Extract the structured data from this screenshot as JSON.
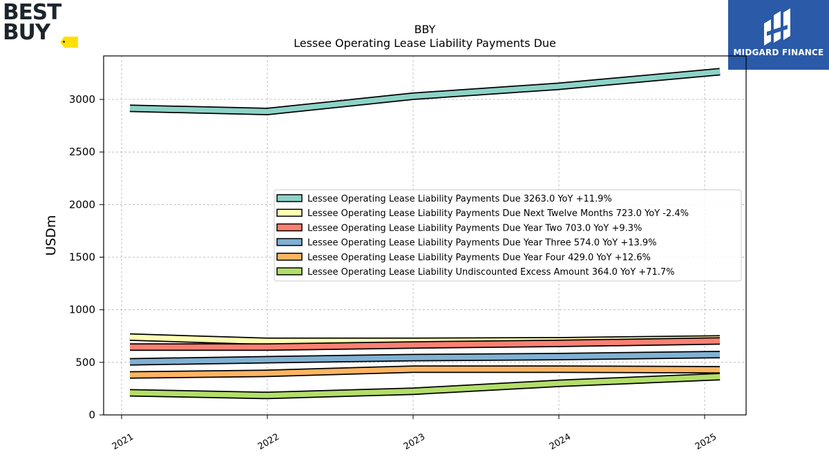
{
  "brand": {
    "logo_text_line1": "BEST",
    "logo_text_line2": "BUY",
    "logo_icon": "price-tag-icon",
    "logo_accent": "#ffe000"
  },
  "partner": {
    "name": "MIDGARD FINANCE",
    "icon": "midgard-logo-icon",
    "background": "#2a5aa8"
  },
  "chart_data": {
    "type": "line",
    "title": "BBY",
    "subtitle": "Lessee Operating Lease Liability Payments Due",
    "xlabel": "",
    "ylabel": "USDm",
    "x": [
      "2021",
      "2022",
      "2023",
      "2024",
      "2025"
    ],
    "ylim": [
      0,
      3400
    ],
    "yticks": [
      0,
      500,
      1000,
      1500,
      2000,
      2500,
      3000
    ],
    "grid": true,
    "legend_position": "center-right",
    "series": [
      {
        "name": "Lessee Operating Lease Liability Payments Due  3263.0 YoY +11.9%",
        "color": "#8dd3c7",
        "values": [
          2915,
          2885,
          3030,
          3125,
          3263
        ]
      },
      {
        "name": "Lessee Operating Lease Liability Payments Due Next Twelve Months  723.0 YoY -2.4%",
        "color": "#ffffb3",
        "values": [
          740,
          700,
          700,
          705,
          723
        ]
      },
      {
        "name": "Lessee Operating Lease Liability Payments Due Year Two  703.0 YoY +9.3%",
        "color": "#fb8072",
        "values": [
          645,
          645,
          665,
          680,
          703
        ]
      },
      {
        "name": "Lessee Operating Lease Liability Payments Due Year Three  574.0 YoY +13.9%",
        "color": "#80b1d3",
        "values": [
          505,
          525,
          545,
          555,
          574
        ]
      },
      {
        "name": "Lessee Operating Lease Liability Payments Due Year Four  429.0 YoY +12.6%",
        "color": "#fdb462",
        "values": [
          380,
          395,
          435,
          435,
          429
        ]
      },
      {
        "name": "Lessee Operating Lease Liability Undiscounted Excess Amount  364.0 YoY +71.7%",
        "color": "#b3de69",
        "values": [
          210,
          185,
          225,
          300,
          364
        ]
      }
    ]
  }
}
